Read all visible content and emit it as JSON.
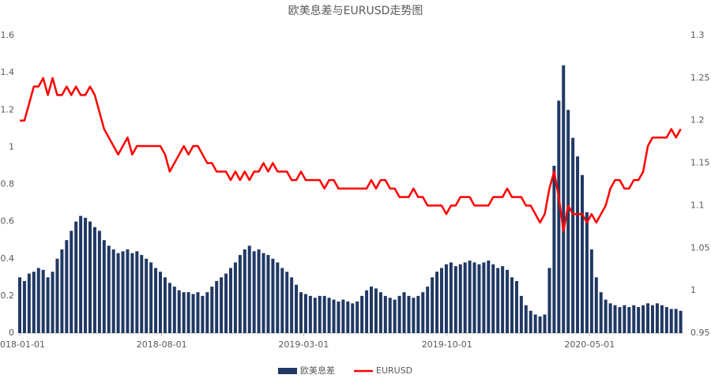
{
  "chart_data": {
    "type": "bar-line",
    "title": "欧美息差与EURUSD走势图",
    "x": [
      "2018-01-01",
      "2018-01-08",
      "2018-01-15",
      "2018-01-22",
      "2018-01-29",
      "2018-02-05",
      "2018-02-12",
      "2018-02-19",
      "2018-02-26",
      "2018-03-05",
      "2018-03-12",
      "2018-03-19",
      "2018-03-26",
      "2018-04-02",
      "2018-04-09",
      "2018-04-16",
      "2018-04-23",
      "2018-04-30",
      "2018-05-07",
      "2018-05-14",
      "2018-05-21",
      "2018-05-28",
      "2018-06-04",
      "2018-06-11",
      "2018-06-18",
      "2018-06-25",
      "2018-07-02",
      "2018-07-09",
      "2018-07-16",
      "2018-07-23",
      "2018-07-30",
      "2018-08-06",
      "2018-08-13",
      "2018-08-20",
      "2018-08-27",
      "2018-09-03",
      "2018-09-10",
      "2018-09-17",
      "2018-09-24",
      "2018-10-01",
      "2018-10-08",
      "2018-10-15",
      "2018-10-22",
      "2018-10-29",
      "2018-11-05",
      "2018-11-12",
      "2018-11-19",
      "2018-11-26",
      "2018-12-03",
      "2018-12-10",
      "2018-12-17",
      "2018-12-24",
      "2018-12-31",
      "2019-01-07",
      "2019-01-14",
      "2019-01-21",
      "2019-01-28",
      "2019-02-04",
      "2019-02-11",
      "2019-02-18",
      "2019-02-25",
      "2019-03-04",
      "2019-03-11",
      "2019-03-18",
      "2019-03-25",
      "2019-04-01",
      "2019-04-08",
      "2019-04-15",
      "2019-04-22",
      "2019-04-29",
      "2019-05-06",
      "2019-05-13",
      "2019-05-20",
      "2019-05-27",
      "2019-06-03",
      "2019-06-10",
      "2019-06-17",
      "2019-06-24",
      "2019-07-01",
      "2019-07-08",
      "2019-07-15",
      "2019-07-22",
      "2019-07-29",
      "2019-08-05",
      "2019-08-12",
      "2019-08-19",
      "2019-08-26",
      "2019-09-02",
      "2019-09-09",
      "2019-09-16",
      "2019-09-23",
      "2019-09-30",
      "2019-10-07",
      "2019-10-14",
      "2019-10-21",
      "2019-10-28",
      "2019-11-04",
      "2019-11-11",
      "2019-11-18",
      "2019-11-25",
      "2019-12-02",
      "2019-12-09",
      "2019-12-16",
      "2019-12-23",
      "2019-12-30",
      "2020-01-06",
      "2020-01-13",
      "2020-01-20",
      "2020-01-27",
      "2020-02-03",
      "2020-02-10",
      "2020-02-17",
      "2020-02-24",
      "2020-03-02",
      "2020-03-09",
      "2020-03-16",
      "2020-03-23",
      "2020-03-30",
      "2020-04-06",
      "2020-04-13",
      "2020-04-20",
      "2020-04-27",
      "2020-05-04",
      "2020-05-11",
      "2020-05-18",
      "2020-05-25",
      "2020-06-01",
      "2020-06-08",
      "2020-06-15",
      "2020-06-22",
      "2020-06-29",
      "2020-07-06",
      "2020-07-13",
      "2020-07-20",
      "2020-07-27",
      "2020-08-03",
      "2020-08-10",
      "2020-08-17",
      "2020-08-24",
      "2020-08-31",
      "2020-09-07",
      "2020-09-14"
    ],
    "series": [
      {
        "name": "欧美息差",
        "type": "bar",
        "color": "#203864",
        "values": [
          0.3,
          0.28,
          0.32,
          0.33,
          0.35,
          0.34,
          0.3,
          0.33,
          0.4,
          0.45,
          0.5,
          0.55,
          0.6,
          0.63,
          0.62,
          0.6,
          0.57,
          0.55,
          0.5,
          0.47,
          0.45,
          0.43,
          0.44,
          0.45,
          0.43,
          0.44,
          0.42,
          0.4,
          0.38,
          0.35,
          0.33,
          0.3,
          0.27,
          0.25,
          0.23,
          0.22,
          0.22,
          0.21,
          0.22,
          0.2,
          0.22,
          0.25,
          0.28,
          0.3,
          0.32,
          0.35,
          0.38,
          0.42,
          0.45,
          0.47,
          0.44,
          0.45,
          0.43,
          0.42,
          0.4,
          0.38,
          0.35,
          0.33,
          0.3,
          0.26,
          0.22,
          0.21,
          0.2,
          0.19,
          0.2,
          0.2,
          0.19,
          0.18,
          0.17,
          0.18,
          0.17,
          0.16,
          0.17,
          0.2,
          0.23,
          0.25,
          0.24,
          0.22,
          0.2,
          0.19,
          0.18,
          0.2,
          0.22,
          0.2,
          0.19,
          0.2,
          0.22,
          0.25,
          0.3,
          0.33,
          0.35,
          0.37,
          0.38,
          0.36,
          0.37,
          0.38,
          0.39,
          0.38,
          0.37,
          0.38,
          0.39,
          0.37,
          0.35,
          0.36,
          0.34,
          0.3,
          0.28,
          0.2,
          0.15,
          0.12,
          0.1,
          0.09,
          0.1,
          0.35,
          0.9,
          1.25,
          1.44,
          1.2,
          1.05,
          0.95,
          0.85,
          0.65,
          0.45,
          0.3,
          0.22,
          0.18,
          0.16,
          0.15,
          0.14,
          0.15,
          0.14,
          0.15,
          0.14,
          0.15,
          0.16,
          0.15,
          0.16,
          0.15,
          0.14,
          0.13,
          0.13,
          0.12
        ]
      },
      {
        "name": "EURUSD",
        "type": "line",
        "axis": "y2",
        "color": "#ff0000",
        "values": [
          1.2,
          1.2,
          1.22,
          1.24,
          1.24,
          1.25,
          1.23,
          1.25,
          1.23,
          1.23,
          1.24,
          1.23,
          1.24,
          1.23,
          1.23,
          1.24,
          1.23,
          1.21,
          1.19,
          1.18,
          1.17,
          1.16,
          1.17,
          1.18,
          1.16,
          1.17,
          1.17,
          1.17,
          1.17,
          1.17,
          1.17,
          1.16,
          1.14,
          1.15,
          1.16,
          1.17,
          1.16,
          1.17,
          1.17,
          1.16,
          1.15,
          1.15,
          1.14,
          1.14,
          1.14,
          1.13,
          1.14,
          1.13,
          1.14,
          1.13,
          1.14,
          1.14,
          1.15,
          1.14,
          1.15,
          1.14,
          1.14,
          1.14,
          1.13,
          1.13,
          1.14,
          1.13,
          1.13,
          1.13,
          1.13,
          1.12,
          1.13,
          1.13,
          1.12,
          1.12,
          1.12,
          1.12,
          1.12,
          1.12,
          1.12,
          1.13,
          1.12,
          1.13,
          1.13,
          1.12,
          1.12,
          1.11,
          1.11,
          1.11,
          1.12,
          1.11,
          1.11,
          1.1,
          1.1,
          1.1,
          1.1,
          1.09,
          1.1,
          1.1,
          1.11,
          1.11,
          1.11,
          1.1,
          1.1,
          1.1,
          1.1,
          1.11,
          1.11,
          1.11,
          1.12,
          1.11,
          1.11,
          1.11,
          1.1,
          1.1,
          1.09,
          1.08,
          1.09,
          1.12,
          1.14,
          1.11,
          1.07,
          1.1,
          1.09,
          1.09,
          1.09,
          1.08,
          1.09,
          1.08,
          1.09,
          1.1,
          1.12,
          1.13,
          1.13,
          1.12,
          1.12,
          1.13,
          1.13,
          1.14,
          1.17,
          1.18,
          1.18,
          1.18,
          1.18,
          1.19,
          1.18,
          1.19
        ]
      }
    ],
    "xlim": [
      "2018-01-01",
      "2020-09-18"
    ],
    "xticks": [
      "2018-01-01",
      "2018-08-01",
      "2019-03-01",
      "2019-10-01",
      "2020-05-01"
    ],
    "ylim": [
      0,
      1.6
    ],
    "yticks": [
      0,
      0.2,
      0.4,
      0.6,
      0.8,
      1,
      1.2,
      1.4,
      1.6
    ],
    "y2lim": [
      0.95,
      1.3
    ],
    "y2ticks": [
      0.95,
      1,
      1.05,
      1.1,
      1.15,
      1.2,
      1.25,
      1.3
    ],
    "legend": "bottom"
  }
}
